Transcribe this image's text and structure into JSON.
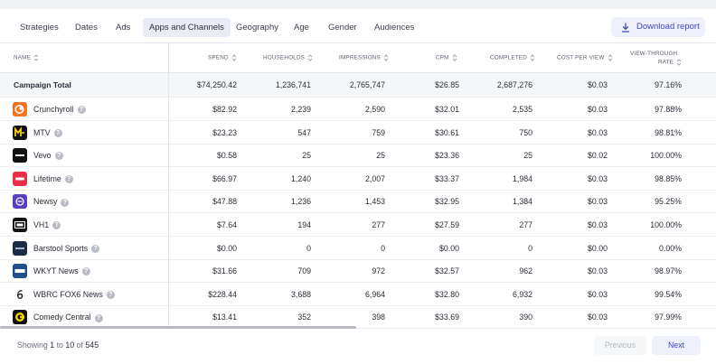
{
  "tabs": [
    {
      "label": "Strategies",
      "active": false
    },
    {
      "label": "Dates",
      "active": false
    },
    {
      "label": "Ads",
      "active": false
    },
    {
      "label": "Apps and Channels",
      "active": true
    },
    {
      "label": "Geography",
      "active": false
    },
    {
      "label": "Age",
      "active": false
    },
    {
      "label": "Gender",
      "active": false
    },
    {
      "label": "Audiences",
      "active": false
    }
  ],
  "download_button": {
    "label": "Download report",
    "icon": "download-icon",
    "color": "#3d46c4"
  },
  "columns": {
    "name": "NAME",
    "spend": "SPEND",
    "households": "HOUSEHOLDS",
    "impressions": "IMPRESSIONS",
    "cpm": "CPM",
    "completed": "COMPLETED",
    "cost_per_view": "COST PER VIEW",
    "view_through_rate_line1": "VIEW-THROUGH",
    "view_through_rate_line2": "RATE"
  },
  "total": {
    "name": "Campaign Total",
    "spend": "$74,250.42",
    "households": "1,236,741",
    "impressions": "2,765,747",
    "cpm": "$26.85",
    "completed": "2,687,276",
    "cost_per_view": "$0.03",
    "view_through_rate": "97.16%"
  },
  "rows": [
    {
      "name": "Crunchyroll",
      "logo": "crunchyroll-logo",
      "logo_color": "#f47521",
      "spend": "$82.92",
      "households": "2,239",
      "impressions": "2,590",
      "cpm": "$32.01",
      "completed": "2,535",
      "cost_per_view": "$0.03",
      "view_through_rate": "97.88%"
    },
    {
      "name": "MTV",
      "logo": "mtv-logo",
      "logo_color": "#111111",
      "spend": "$23.23",
      "households": "547",
      "impressions": "759",
      "cpm": "$30.61",
      "completed": "750",
      "cost_per_view": "$0.03",
      "view_through_rate": "98.81%"
    },
    {
      "name": "Vevo",
      "logo": "vevo-logo",
      "logo_color": "#111111",
      "spend": "$0.58",
      "households": "25",
      "impressions": "25",
      "cpm": "$23.36",
      "completed": "25",
      "cost_per_view": "$0.02",
      "view_through_rate": "100.00%"
    },
    {
      "name": "Lifetime",
      "logo": "lifetime-logo",
      "logo_color": "#e8304a",
      "spend": "$66.97",
      "households": "1,240",
      "impressions": "2,007",
      "cpm": "$33.37",
      "completed": "1,984",
      "cost_per_view": "$0.03",
      "view_through_rate": "98.85%"
    },
    {
      "name": "Newsy",
      "logo": "newsy-logo",
      "logo_color": "#5a3fc0",
      "spend": "$47.88",
      "households": "1,236",
      "impressions": "1,453",
      "cpm": "$32.95",
      "completed": "1,384",
      "cost_per_view": "$0.03",
      "view_through_rate": "95.25%"
    },
    {
      "name": "VH1",
      "logo": "vh1-logo",
      "logo_color": "#111111",
      "spend": "$7.64",
      "households": "194",
      "impressions": "277",
      "cpm": "$27.59",
      "completed": "277",
      "cost_per_view": "$0.03",
      "view_through_rate": "100.00%"
    },
    {
      "name": "Barstool Sports",
      "logo": "barstool-logo",
      "logo_color": "#1d2b44",
      "spend": "$0.00",
      "households": "0",
      "impressions": "0",
      "cpm": "$0.00",
      "completed": "0",
      "cost_per_view": "$0.00",
      "view_through_rate": "0.00%"
    },
    {
      "name": "WKYT News",
      "logo": "wkyt-logo",
      "logo_color": "#1f4f8c",
      "spend": "$31.66",
      "households": "709",
      "impressions": "972",
      "cpm": "$32.57",
      "completed": "962",
      "cost_per_view": "$0.03",
      "view_through_rate": "98.97%"
    },
    {
      "name": "WBRC FOX6 News",
      "logo": "fox6-logo",
      "logo_color": "#222222",
      "spend": "$228.44",
      "households": "3,688",
      "impressions": "6,964",
      "cpm": "$32.80",
      "completed": "6,932",
      "cost_per_view": "$0.03",
      "view_through_rate": "99.54%"
    },
    {
      "name": "Comedy Central",
      "logo": "comedy-central-logo",
      "logo_color": "#111111",
      "spend": "$13.41",
      "households": "352",
      "impressions": "398",
      "cpm": "$33.69",
      "completed": "390",
      "cost_per_view": "$0.03",
      "view_through_rate": "97.99%"
    }
  ],
  "pagination": {
    "prefix": "Showing",
    "from": "1",
    "to_word": "to",
    "to": "10",
    "of_word": "of",
    "total": "545",
    "previous_label": "Previous",
    "next_label": "Next"
  }
}
